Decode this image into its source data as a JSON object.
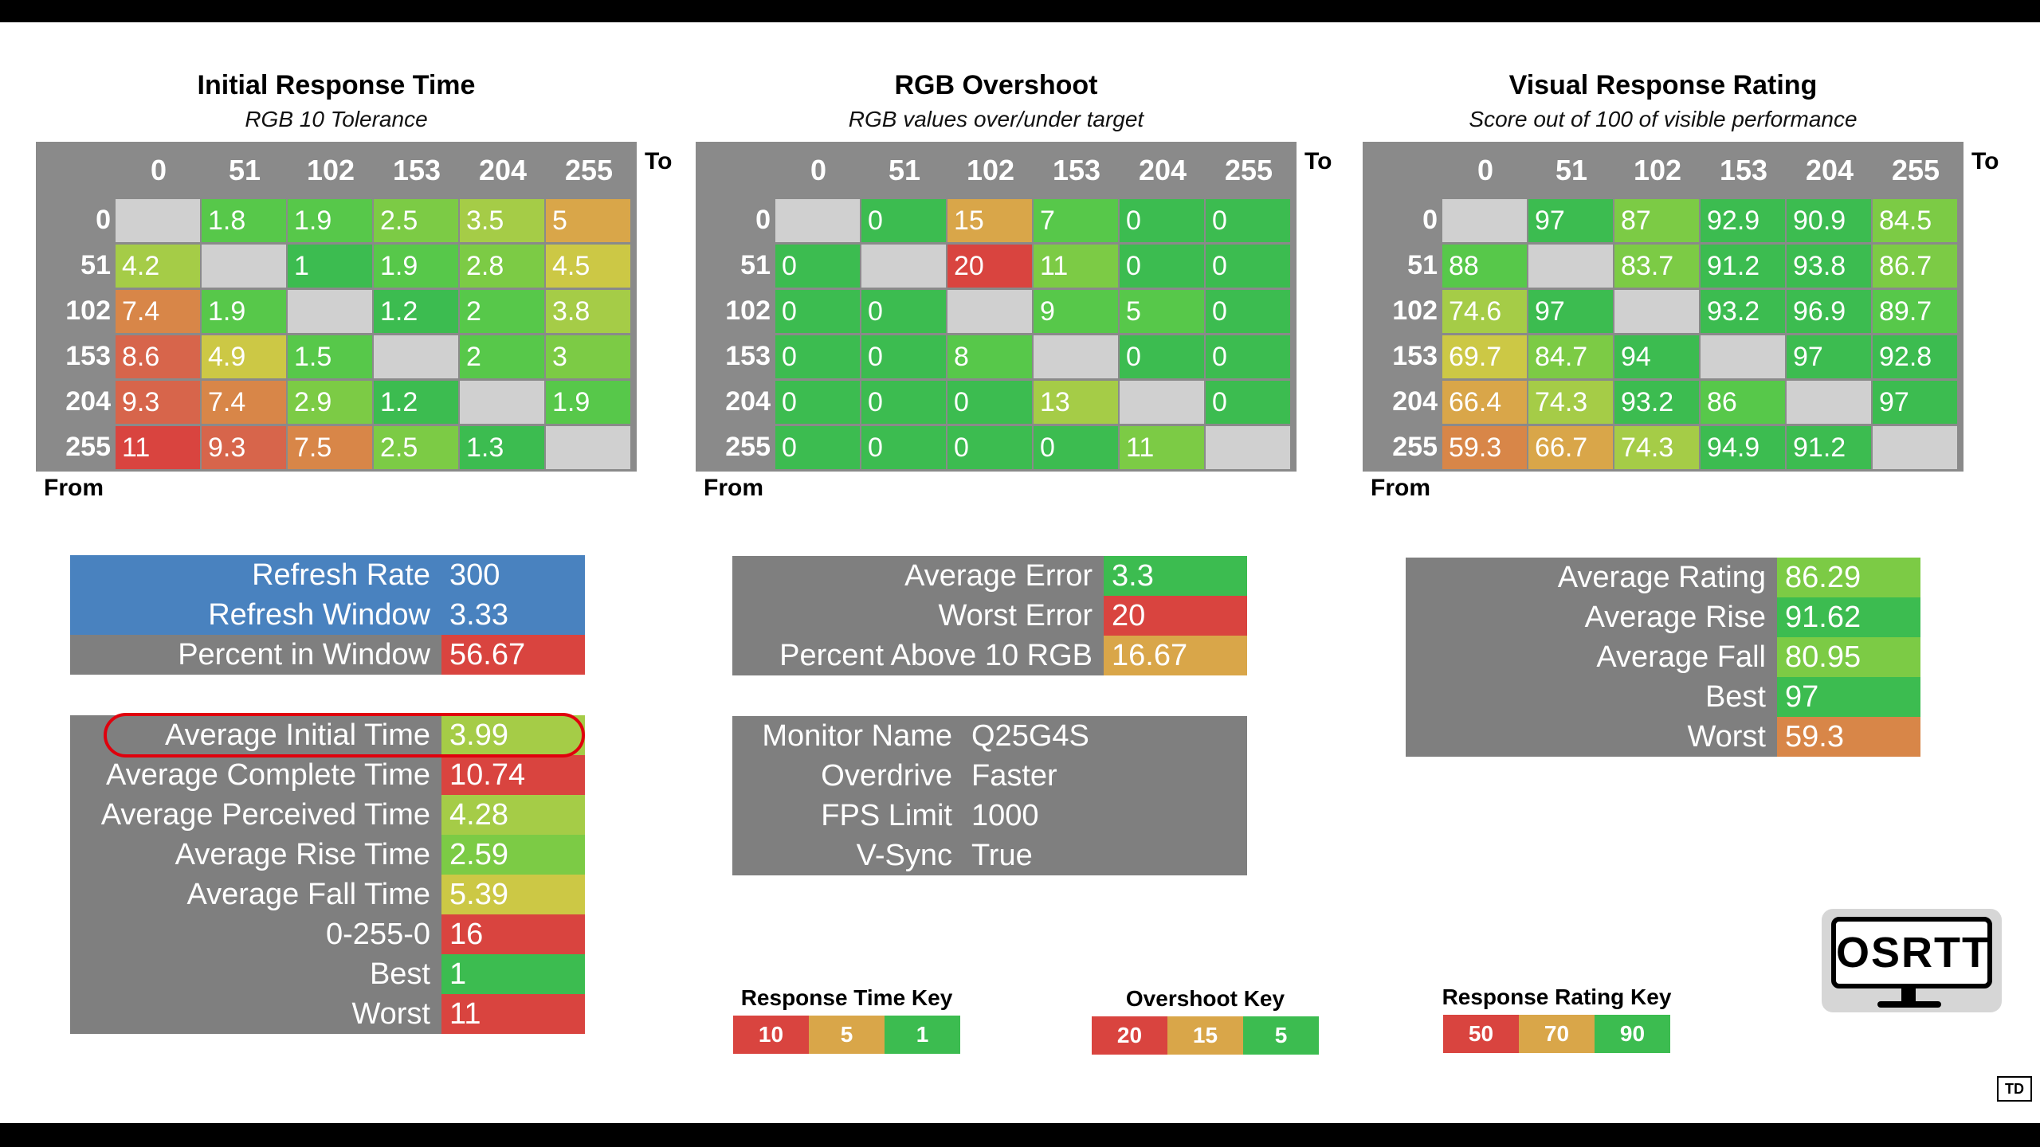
{
  "colors": {
    "green_dark": "#3cbc50",
    "green": "#57c84a",
    "green_light": "#7ccb45",
    "yellow_green": "#a5cc47",
    "yellow": "#ccc845",
    "orange": "#d9a649",
    "orange_red": "#d88648",
    "red_orange": "#d7654b",
    "red": "#d9443f",
    "blue": "#4982bf",
    "gray": "#7f7f7f",
    "diag": "#d0d0d0",
    "highlight_ring": "#e0000d"
  },
  "common": {
    "to_label": "To",
    "from_label": "From",
    "col_headers": [
      "0",
      "51",
      "102",
      "153",
      "204",
      "255"
    ],
    "row_headers": [
      "0",
      "51",
      "102",
      "153",
      "204",
      "255"
    ]
  },
  "tables": [
    {
      "title": "Initial Response Time",
      "subtitle": "RGB 10 Tolerance",
      "cells": [
        [
          {
            "v": "",
            "c": "diag"
          },
          {
            "v": "1.8",
            "c": "green"
          },
          {
            "v": "1.9",
            "c": "green"
          },
          {
            "v": "2.5",
            "c": "green_light"
          },
          {
            "v": "3.5",
            "c": "yellow_green"
          },
          {
            "v": "5",
            "c": "orange"
          }
        ],
        [
          {
            "v": "4.2",
            "c": "yellow_green"
          },
          {
            "v": "",
            "c": "diag"
          },
          {
            "v": "1",
            "c": "green_dark"
          },
          {
            "v": "1.9",
            "c": "green"
          },
          {
            "v": "2.8",
            "c": "green_light"
          },
          {
            "v": "4.5",
            "c": "yellow"
          }
        ],
        [
          {
            "v": "7.4",
            "c": "orange_red"
          },
          {
            "v": "1.9",
            "c": "green"
          },
          {
            "v": "",
            "c": "diag"
          },
          {
            "v": "1.2",
            "c": "green_dark"
          },
          {
            "v": "2",
            "c": "green"
          },
          {
            "v": "3.8",
            "c": "yellow_green"
          }
        ],
        [
          {
            "v": "8.6",
            "c": "red_orange"
          },
          {
            "v": "4.9",
            "c": "yellow"
          },
          {
            "v": "1.5",
            "c": "green"
          },
          {
            "v": "",
            "c": "diag"
          },
          {
            "v": "2",
            "c": "green"
          },
          {
            "v": "3",
            "c": "green_light"
          }
        ],
        [
          {
            "v": "9.3",
            "c": "red_orange"
          },
          {
            "v": "7.4",
            "c": "orange_red"
          },
          {
            "v": "2.9",
            "c": "green_light"
          },
          {
            "v": "1.2",
            "c": "green_dark"
          },
          {
            "v": "",
            "c": "diag"
          },
          {
            "v": "1.9",
            "c": "green"
          }
        ],
        [
          {
            "v": "11",
            "c": "red"
          },
          {
            "v": "9.3",
            "c": "red_orange"
          },
          {
            "v": "7.5",
            "c": "orange_red"
          },
          {
            "v": "2.5",
            "c": "green_light"
          },
          {
            "v": "1.3",
            "c": "green_dark"
          },
          {
            "v": "",
            "c": "diag"
          }
        ]
      ]
    },
    {
      "title": "RGB Overshoot",
      "subtitle": "RGB values over/under target",
      "cells": [
        [
          {
            "v": "",
            "c": "diag"
          },
          {
            "v": "0",
            "c": "green_dark"
          },
          {
            "v": "15",
            "c": "orange"
          },
          {
            "v": "7",
            "c": "green"
          },
          {
            "v": "0",
            "c": "green_dark"
          },
          {
            "v": "0",
            "c": "green_dark"
          }
        ],
        [
          {
            "v": "0",
            "c": "green_dark"
          },
          {
            "v": "",
            "c": "diag"
          },
          {
            "v": "20",
            "c": "red"
          },
          {
            "v": "11",
            "c": "green_light"
          },
          {
            "v": "0",
            "c": "green_dark"
          },
          {
            "v": "0",
            "c": "green_dark"
          }
        ],
        [
          {
            "v": "0",
            "c": "green_dark"
          },
          {
            "v": "0",
            "c": "green_dark"
          },
          {
            "v": "",
            "c": "diag"
          },
          {
            "v": "9",
            "c": "green"
          },
          {
            "v": "5",
            "c": "green"
          },
          {
            "v": "0",
            "c": "green_dark"
          }
        ],
        [
          {
            "v": "0",
            "c": "green_dark"
          },
          {
            "v": "0",
            "c": "green_dark"
          },
          {
            "v": "8",
            "c": "green"
          },
          {
            "v": "",
            "c": "diag"
          },
          {
            "v": "0",
            "c": "green_dark"
          },
          {
            "v": "0",
            "c": "green_dark"
          }
        ],
        [
          {
            "v": "0",
            "c": "green_dark"
          },
          {
            "v": "0",
            "c": "green_dark"
          },
          {
            "v": "0",
            "c": "green_dark"
          },
          {
            "v": "13",
            "c": "yellow_green"
          },
          {
            "v": "",
            "c": "diag"
          },
          {
            "v": "0",
            "c": "green_dark"
          }
        ],
        [
          {
            "v": "0",
            "c": "green_dark"
          },
          {
            "v": "0",
            "c": "green_dark"
          },
          {
            "v": "0",
            "c": "green_dark"
          },
          {
            "v": "0",
            "c": "green_dark"
          },
          {
            "v": "11",
            "c": "green_light"
          },
          {
            "v": "",
            "c": "diag"
          }
        ]
      ]
    },
    {
      "title": "Visual Response Rating",
      "subtitle": "Score out of 100 of visible performance",
      "cells": [
        [
          {
            "v": "",
            "c": "diag"
          },
          {
            "v": "97",
            "c": "green_dark"
          },
          {
            "v": "87",
            "c": "green_light"
          },
          {
            "v": "92.9",
            "c": "green_dark"
          },
          {
            "v": "90.9",
            "c": "green_dark"
          },
          {
            "v": "84.5",
            "c": "green_light"
          }
        ],
        [
          {
            "v": "88",
            "c": "green"
          },
          {
            "v": "",
            "c": "diag"
          },
          {
            "v": "83.7",
            "c": "green_light"
          },
          {
            "v": "91.2",
            "c": "green_dark"
          },
          {
            "v": "93.8",
            "c": "green_dark"
          },
          {
            "v": "86.7",
            "c": "green_light"
          }
        ],
        [
          {
            "v": "74.6",
            "c": "yellow_green"
          },
          {
            "v": "97",
            "c": "green_dark"
          },
          {
            "v": "",
            "c": "diag"
          },
          {
            "v": "93.2",
            "c": "green_dark"
          },
          {
            "v": "96.9",
            "c": "green_dark"
          },
          {
            "v": "89.7",
            "c": "green"
          }
        ],
        [
          {
            "v": "69.7",
            "c": "yellow"
          },
          {
            "v": "84.7",
            "c": "green_light"
          },
          {
            "v": "94",
            "c": "green_dark"
          },
          {
            "v": "",
            "c": "diag"
          },
          {
            "v": "97",
            "c": "green_dark"
          },
          {
            "v": "92.8",
            "c": "green_dark"
          }
        ],
        [
          {
            "v": "66.4",
            "c": "orange"
          },
          {
            "v": "74.3",
            "c": "yellow_green"
          },
          {
            "v": "93.2",
            "c": "green_dark"
          },
          {
            "v": "86",
            "c": "green"
          },
          {
            "v": "",
            "c": "diag"
          },
          {
            "v": "97",
            "c": "green_dark"
          }
        ],
        [
          {
            "v": "59.3",
            "c": "orange_red"
          },
          {
            "v": "66.7",
            "c": "orange"
          },
          {
            "v": "74.3",
            "c": "yellow_green"
          },
          {
            "v": "94.9",
            "c": "green_dark"
          },
          {
            "v": "91.2",
            "c": "green_dark"
          },
          {
            "v": "",
            "c": "diag"
          }
        ]
      ]
    }
  ],
  "summary_refresh": [
    {
      "label": "Refresh Rate",
      "value": "300",
      "lc": "blue",
      "vc": "blue"
    },
    {
      "label": "Refresh Window",
      "value": "3.33",
      "lc": "blue",
      "vc": "blue"
    },
    {
      "label": "Percent in Window",
      "value": "56.67",
      "lc": "gray",
      "vc": "red"
    }
  ],
  "summary_times": [
    {
      "label": "Average Initial Time",
      "value": "3.99",
      "vc": "yellow_green"
    },
    {
      "label": "Average Complete Time",
      "value": "10.74",
      "vc": "red"
    },
    {
      "label": "Average Perceived Time",
      "value": "4.28",
      "vc": "yellow_green"
    },
    {
      "label": "Average Rise Time",
      "value": "2.59",
      "vc": "green_light"
    },
    {
      "label": "Average Fall Time",
      "value": "5.39",
      "vc": "yellow"
    },
    {
      "label": "0-255-0",
      "value": "16",
      "vc": "red"
    },
    {
      "label": "Best",
      "value": "1",
      "vc": "green_dark"
    },
    {
      "label": "Worst",
      "value": "11",
      "vc": "red"
    }
  ],
  "summary_overshoot": [
    {
      "label": "Average Error",
      "value": "3.3",
      "vc": "green_dark"
    },
    {
      "label": "Worst Error",
      "value": "20",
      "vc": "red"
    },
    {
      "label": "Percent Above 10 RGB",
      "value": "16.67",
      "vc": "orange"
    }
  ],
  "monitor_info": [
    {
      "label": "Monitor Name",
      "value": "Q25G4S"
    },
    {
      "label": "Overdrive",
      "value": "Faster"
    },
    {
      "label": "FPS Limit",
      "value": "1000"
    },
    {
      "label": "V-Sync",
      "value": "True"
    }
  ],
  "summary_rating": [
    {
      "label": "Average Rating",
      "value": "86.29",
      "vc": "green_light"
    },
    {
      "label": "Average Rise",
      "value": "91.62",
      "vc": "green_dark"
    },
    {
      "label": "Average Fall",
      "value": "80.95",
      "vc": "green_light"
    },
    {
      "label": "Best",
      "value": "97",
      "vc": "green_dark"
    },
    {
      "label": "Worst",
      "value": "59.3",
      "vc": "orange_red"
    }
  ],
  "keys": [
    {
      "title": "Response Time Key",
      "cells": [
        {
          "v": "10",
          "c": "red"
        },
        {
          "v": "5",
          "c": "orange"
        },
        {
          "v": "1",
          "c": "green_dark"
        }
      ]
    },
    {
      "title": "Overshoot Key",
      "cells": [
        {
          "v": "20",
          "c": "red"
        },
        {
          "v": "15",
          "c": "orange"
        },
        {
          "v": "5",
          "c": "green_dark"
        }
      ]
    },
    {
      "title": "Response Rating Key",
      "cells": [
        {
          "v": "50",
          "c": "red"
        },
        {
          "v": "70",
          "c": "orange"
        },
        {
          "v": "90",
          "c": "green_dark"
        }
      ]
    }
  ],
  "logo": {
    "text": "OSRTT"
  },
  "watermark": {
    "text": "TD"
  }
}
